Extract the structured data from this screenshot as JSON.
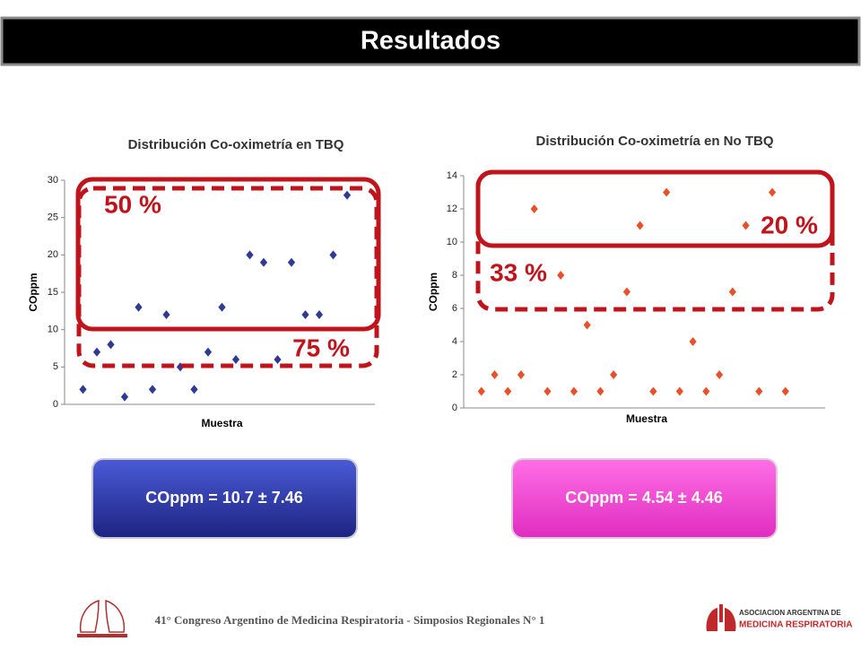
{
  "title": "Resultados",
  "chart_data": [
    {
      "type": "scatter",
      "title": "Distribución  Co-oximetría en TBQ",
      "x_label": "Muestra",
      "y_label": "COppm",
      "x": [
        1,
        2,
        3,
        4,
        5,
        6,
        7,
        8,
        9,
        10,
        11,
        12,
        13,
        14,
        15,
        16,
        17,
        18,
        19,
        20
      ],
      "values": [
        2,
        7,
        8,
        1,
        13,
        2,
        12,
        5,
        2,
        7,
        13,
        6,
        20,
        19,
        6,
        19,
        12,
        12,
        20,
        28
      ],
      "color": "#2e3a94",
      "xlim": [
        0,
        22
      ],
      "ylim": [
        0,
        30
      ],
      "yticks": [
        0,
        5,
        10,
        15,
        20,
        25,
        30
      ],
      "grid": false,
      "annotations": [
        "50 %",
        "75 %"
      ]
    },
    {
      "type": "scatter",
      "title": "Distribución  Co-oximetría  en No TBQ",
      "x_label": "Muestra",
      "y_label": "COppm",
      "x": [
        1,
        2,
        3,
        4,
        5,
        6,
        7,
        8,
        9,
        10,
        11,
        12,
        13,
        14,
        15,
        16,
        17,
        18,
        19,
        20,
        21,
        22,
        23,
        24
      ],
      "values": [
        1,
        2,
        1,
        2,
        12,
        1,
        8,
        1,
        5,
        1,
        2,
        7,
        11,
        1,
        13,
        1,
        4,
        1,
        2,
        7,
        11,
        1,
        13,
        1
      ],
      "color": "#e8502a",
      "xlim": [
        0,
        27
      ],
      "ylim": [
        0,
        14
      ],
      "yticks": [
        0,
        2,
        4,
        6,
        8,
        10,
        12,
        14
      ],
      "grid": false,
      "annotations": [
        "20 %",
        "33 %"
      ]
    }
  ],
  "summaries": [
    "COppm = 10.7  ± 7.46",
    "COppm = 4.54  ± 4.46"
  ],
  "footer": "41° Congreso Argentino de Medicina Respiratoria  - Simposios Regionales N° 1",
  "logo_text": [
    "ASOCIACION ARGENTINA DE",
    "MEDICINA RESPIRATORIA"
  ]
}
